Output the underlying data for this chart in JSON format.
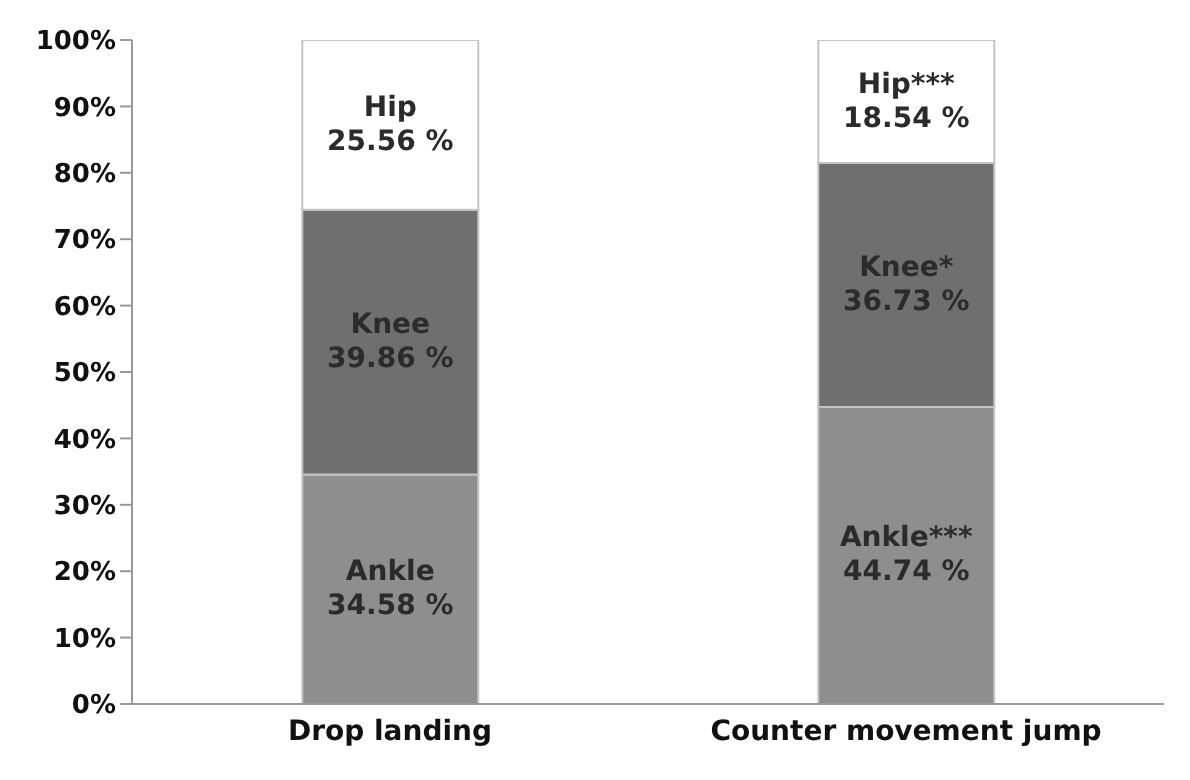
{
  "chart_data": {
    "type": "bar",
    "stacked": true,
    "categories": [
      "Drop landing",
      "Counter movement jump"
    ],
    "series": [
      {
        "color": "#8e8e8e",
        "values": [
          34.58,
          44.74
        ],
        "value_labels": [
          "Ankle\n34.58 %",
          "Ankle***\n44.74 %"
        ]
      },
      {
        "color": "#6f6f6f",
        "values": [
          39.86,
          36.73
        ],
        "value_labels": [
          "Knee\n39.86 %",
          "Knee*\n36.73 %"
        ]
      },
      {
        "color": "#ffffff",
        "values": [
          25.56,
          18.54
        ],
        "value_labels": [
          "Hip\n25.56 %",
          "Hip***\n18.54 %"
        ]
      }
    ],
    "ylim": [
      0,
      100
    ],
    "yticks": [
      {
        "value": 0,
        "label": "0%"
      },
      {
        "value": 10,
        "label": "10%"
      },
      {
        "value": 20,
        "label": "20%"
      },
      {
        "value": 30,
        "label": "30%"
      },
      {
        "value": 40,
        "label": "40%"
      },
      {
        "value": 50,
        "label": "50%"
      },
      {
        "value": 60,
        "label": "60%"
      },
      {
        "value": 70,
        "label": "70%"
      },
      {
        "value": 80,
        "label": "80%"
      },
      {
        "value": 90,
        "label": "90%"
      },
      {
        "value": 100,
        "label": "100%"
      }
    ],
    "grid": false,
    "legend": false
  }
}
